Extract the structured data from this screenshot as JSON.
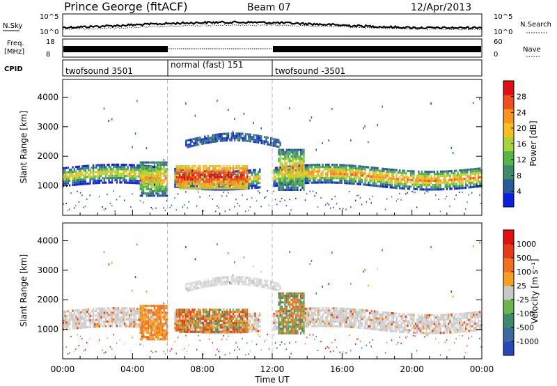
{
  "header": {
    "station": "Prince George (fitACF)",
    "beam": "Beam 07",
    "date": "12/Apr/2013"
  },
  "noise_panel": {
    "left_label": "N.Sky",
    "right_label": "N.Search",
    "left_ticks": [
      "10^5",
      "10^0"
    ],
    "right_ticks": [
      "10^5",
      "10^0"
    ]
  },
  "freq_panel": {
    "left_label_line1": "Freq.",
    "left_label_line2": "[MHz]",
    "right_label": "Nave",
    "left_ticks": [
      "18",
      "8"
    ],
    "right_ticks": [
      "60",
      "0"
    ]
  },
  "cpid_panel": {
    "label": "CPID",
    "segments": [
      {
        "name": "twofsound 3501",
        "start_hour": 0,
        "end_hour": 6
      },
      {
        "name": "normal (fast) 151",
        "start_hour": 6,
        "end_hour": 12
      },
      {
        "name": "twofsound -3501",
        "start_hour": 12,
        "end_hour": 24
      }
    ]
  },
  "chart_data": [
    {
      "type": "heatmap",
      "name": "power",
      "ylabel": "Slant Range [km]",
      "yticks": [
        1000,
        2000,
        3000,
        4000
      ],
      "ylim": [
        0,
        4600
      ],
      "xlim": [
        0,
        24
      ],
      "colorbar": {
        "label": "Power [dB]",
        "ticks": [
          "4",
          "8",
          "12",
          "16",
          "20",
          "24",
          "28"
        ],
        "range": [
          0,
          30
        ],
        "colors": [
          "#0a1fe0",
          "#2a5a9a",
          "#3e8a6a",
          "#55b545",
          "#a8d43a",
          "#f3c020",
          "#f7951f",
          "#ef4e1f",
          "#e01010"
        ]
      },
      "features": [
        {
          "x_hours": [
            0,
            24
          ],
          "range_km": [
            1050,
            1650
          ],
          "level_db": 18,
          "label": "main echo band"
        },
        {
          "x_hours": [
            6.5,
            10.5
          ],
          "range_km": [
            900,
            1700
          ],
          "level_db": 27,
          "label": "strong daytime echoes"
        },
        {
          "x_hours": [
            7,
            11.5
          ],
          "range_km": [
            2300,
            2700
          ],
          "level_db": 6,
          "label": "distant scatter arc"
        }
      ]
    },
    {
      "type": "heatmap",
      "name": "velocity",
      "xlabel": "Time UT",
      "ylabel": "Slant Range [km]",
      "yticks": [
        1000,
        2000,
        3000,
        4000
      ],
      "ylim": [
        0,
        4600
      ],
      "xlim": [
        0,
        24
      ],
      "xticks": [
        "00:00",
        "04:00",
        "08:00",
        "12:00",
        "16:00",
        "20:00",
        "00:00"
      ],
      "colorbar": {
        "label": "Velocity [m s⁻¹]",
        "ticks": [
          "1000",
          "500",
          "100",
          "25",
          "-25",
          "-100",
          "-500",
          "-1000"
        ],
        "colors": [
          "#2848b8",
          "#3a6aa0",
          "#3e8a6a",
          "#6ab64a",
          "#c8c8c8",
          "#f4a020",
          "#f07020",
          "#e83a18",
          "#e01010"
        ]
      },
      "features": [
        {
          "x_hours": [
            0,
            24
          ],
          "range_km": [
            1050,
            1650
          ],
          "velocity_ms": 0,
          "label": "ground scatter"
        },
        {
          "x_hours": [
            6,
            10.5
          ],
          "range_km": [
            900,
            1700
          ],
          "velocity_ms": -400,
          "label": "receding echoes"
        }
      ]
    }
  ]
}
